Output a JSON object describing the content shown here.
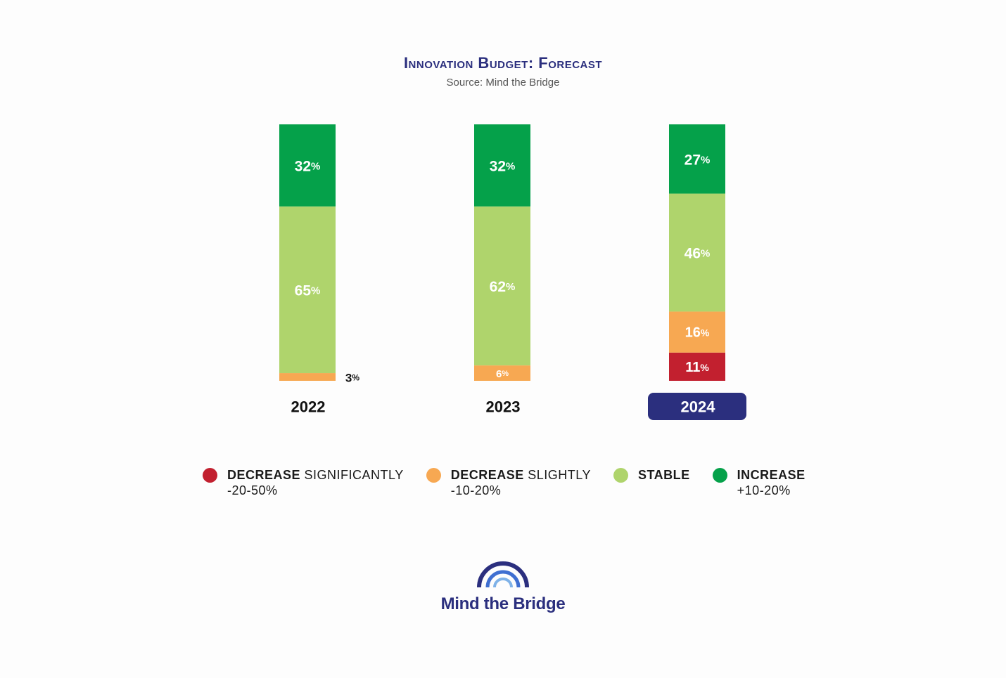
{
  "chart_data": {
    "type": "bar",
    "stacked": true,
    "title": "Innovation Budget: Forecast",
    "subtitle": "Source: Mind the Bridge",
    "categories": [
      "2022",
      "2023",
      "2024"
    ],
    "highlighted_category": "2024",
    "value_suffix": "%",
    "series": [
      {
        "key": "decrease_significantly",
        "values": [
          0,
          0,
          11
        ],
        "color": "#c2202f"
      },
      {
        "key": "decrease_slightly",
        "values": [
          3,
          6,
          16
        ],
        "color": "#f7a852"
      },
      {
        "key": "stable",
        "values": [
          65,
          62,
          46
        ],
        "color": "#afd46c"
      },
      {
        "key": "increase",
        "values": [
          32,
          32,
          27
        ],
        "color": "#05a14a"
      }
    ],
    "ylim": [
      0,
      100
    ],
    "legend_position": "bottom"
  },
  "legend": [
    {
      "strong": "DECREASE",
      "light": "SIGNIFICANTLY",
      "range": "-20-50%",
      "color": "#c2202f"
    },
    {
      "strong": "DECREASE",
      "light": "SLIGHTLY",
      "range": "-10-20%",
      "color": "#f7a852"
    },
    {
      "strong": "STABLE",
      "light": "",
      "range": "",
      "color": "#afd46c"
    },
    {
      "strong": "INCREASE",
      "light": "",
      "range": "+10-20%",
      "color": "#05a14a"
    }
  ],
  "logo": {
    "text": "Mind the Bridge",
    "color": "#2b2f7e",
    "arc_color": "#2b2f7e",
    "arc_inner_color": "#3f6fd1"
  }
}
